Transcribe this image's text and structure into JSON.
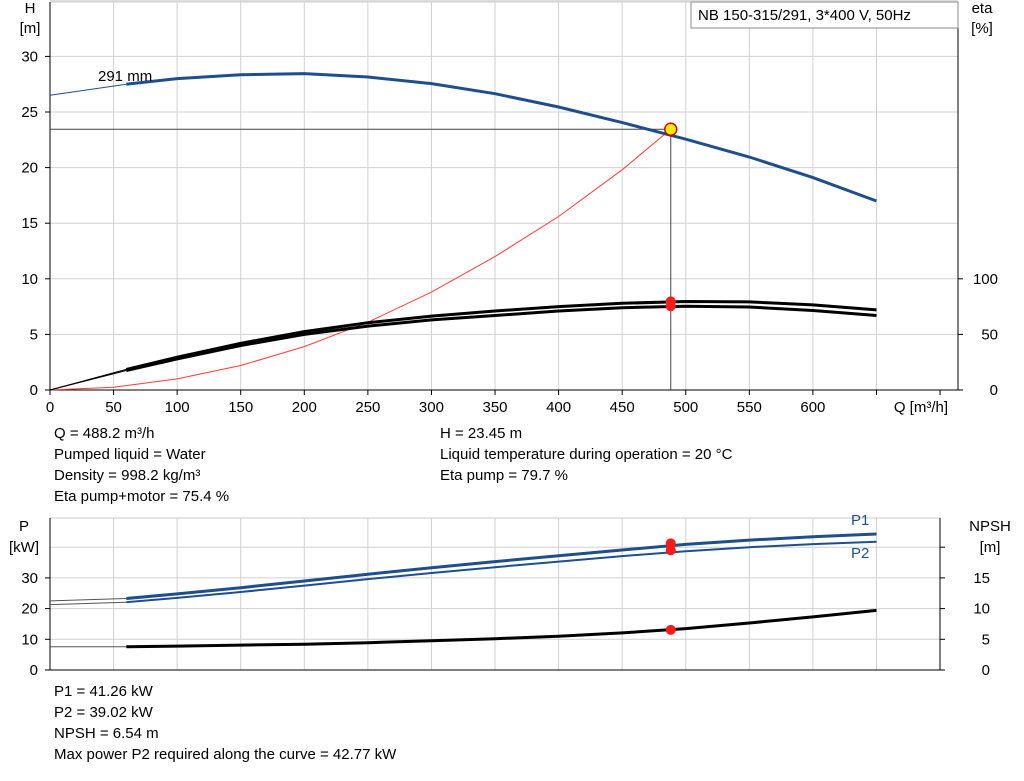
{
  "title": "NB 150-315/291, 3*400 V, 50Hz",
  "colors": {
    "blue": "#1f4e8c",
    "black": "#000000",
    "red_line": "#ff3b3b",
    "marker_red": "#ff1a1a",
    "marker_yellow": "#ffee00",
    "grid": "#d0d0d0"
  },
  "chart_data": [
    {
      "type": "line",
      "title": "NB 150-315/291, 3*400 V, 50Hz",
      "xlabel": "Q [m³/h]",
      "ylabel_left": [
        "H",
        "[m]"
      ],
      "ylabel_right": [
        "eta",
        "[%]"
      ],
      "xlim": [
        0,
        700
      ],
      "ylim_left": [
        0,
        35
      ],
      "ylim_right": [
        0,
        315
      ],
      "x_ticks": [
        0,
        50,
        100,
        150,
        200,
        250,
        300,
        350,
        400,
        450,
        500,
        550,
        600
      ],
      "y_ticks_left": [
        0,
        5,
        10,
        15,
        20,
        25,
        30
      ],
      "y_ticks_right": [
        0,
        50,
        100
      ],
      "grid": true,
      "annotation": "291 mm",
      "series": [
        {
          "key": "H",
          "axis": "left",
          "x": [
            0,
            60,
            100,
            150,
            200,
            250,
            300,
            350,
            400,
            450,
            500,
            550,
            600,
            650
          ],
          "y": [
            26.5,
            27.5,
            28.0,
            28.35,
            28.45,
            28.15,
            27.55,
            26.65,
            25.45,
            24.05,
            22.55,
            20.95,
            19.1,
            17.0
          ]
        },
        {
          "key": "eta_pump",
          "axis": "right",
          "x": [
            0,
            60,
            100,
            150,
            200,
            250,
            300,
            350,
            400,
            450,
            500,
            550,
            600,
            650
          ],
          "y": [
            0,
            18.5,
            29.5,
            42,
            52.5,
            60.5,
            66.5,
            71,
            75,
            78,
            79.6,
            79.2,
            76.5,
            72
          ]
        },
        {
          "key": "eta_total",
          "axis": "right",
          "x": [
            0,
            60,
            100,
            150,
            200,
            250,
            300,
            350,
            400,
            450,
            500,
            550,
            600,
            650
          ],
          "y": [
            0,
            17.5,
            28,
            40,
            50,
            57.5,
            63,
            67,
            71,
            74,
            75.3,
            74.6,
            71.5,
            67
          ]
        },
        {
          "key": "system",
          "axis": "left",
          "x": [
            0,
            50,
            100,
            150,
            200,
            250,
            300,
            350,
            400,
            450,
            488.2
          ],
          "y": [
            0,
            0.25,
            1.0,
            2.2,
            3.9,
            6.1,
            8.8,
            12.0,
            15.6,
            19.8,
            23.45
          ]
        }
      ],
      "operating_point": {
        "q": 488.2,
        "h": 23.45,
        "eta_pump": 79.7,
        "eta_total": 75.4
      }
    },
    {
      "type": "line",
      "xlim": [
        0,
        700
      ],
      "ylabel_left": [
        "P",
        "[kW]"
      ],
      "ylabel_right": [
        "NPSH",
        "[m]"
      ],
      "ylim_left": [
        0,
        50
      ],
      "ylim_right": [
        0,
        25
      ],
      "y_ticks_left": [
        0,
        10,
        20,
        30
      ],
      "y_ticks_right": [
        0,
        5,
        10,
        15
      ],
      "grid": true,
      "series": [
        {
          "key": "P1",
          "name": "P1",
          "axis": "left",
          "x": [
            0,
            60,
            100,
            150,
            200,
            250,
            300,
            350,
            400,
            450,
            500,
            550,
            600,
            650
          ],
          "y": [
            22.5,
            23.3,
            24.8,
            26.8,
            29.0,
            31.2,
            33.3,
            35.3,
            37.2,
            39.1,
            40.9,
            42.3,
            43.4,
            44.3
          ]
        },
        {
          "key": "P2",
          "name": "P2",
          "axis": "left",
          "x": [
            0,
            60,
            100,
            150,
            200,
            250,
            300,
            350,
            400,
            450,
            500,
            550,
            600,
            650
          ],
          "y": [
            21.3,
            22.1,
            23.5,
            25.4,
            27.5,
            29.6,
            31.6,
            33.5,
            35.3,
            37.1,
            38.7,
            40.0,
            41.0,
            41.8
          ]
        },
        {
          "key": "NPSH",
          "axis": "right",
          "x": [
            0,
            60,
            100,
            150,
            200,
            250,
            300,
            350,
            400,
            450,
            500,
            550,
            600,
            650
          ],
          "y": [
            3.8,
            3.8,
            3.9,
            4.05,
            4.2,
            4.45,
            4.75,
            5.1,
            5.5,
            6.05,
            6.75,
            7.65,
            8.65,
            9.7
          ]
        }
      ],
      "operating_point": {
        "q": 488.2,
        "p1": 41.26,
        "p2": 39.02,
        "npsh": 6.54
      }
    }
  ],
  "info_top": {
    "q": "Q = 488.2 m³/h",
    "liquid": "Pumped liquid = Water",
    "density": "Density = 998.2 kg/m³",
    "eta_total": "Eta pump+motor = 75.4 %",
    "h": "H = 23.45 m",
    "temp": "Liquid temperature during operation = 20 °C",
    "eta_pump": "Eta pump = 79.7 %"
  },
  "info_bottom": {
    "p1": "P1 = 41.26 kW",
    "p2": "P2 = 39.02 kW",
    "npsh": "NPSH = 6.54 m",
    "max_p2": "Max power P2 required along the curve = 42.77 kW"
  }
}
